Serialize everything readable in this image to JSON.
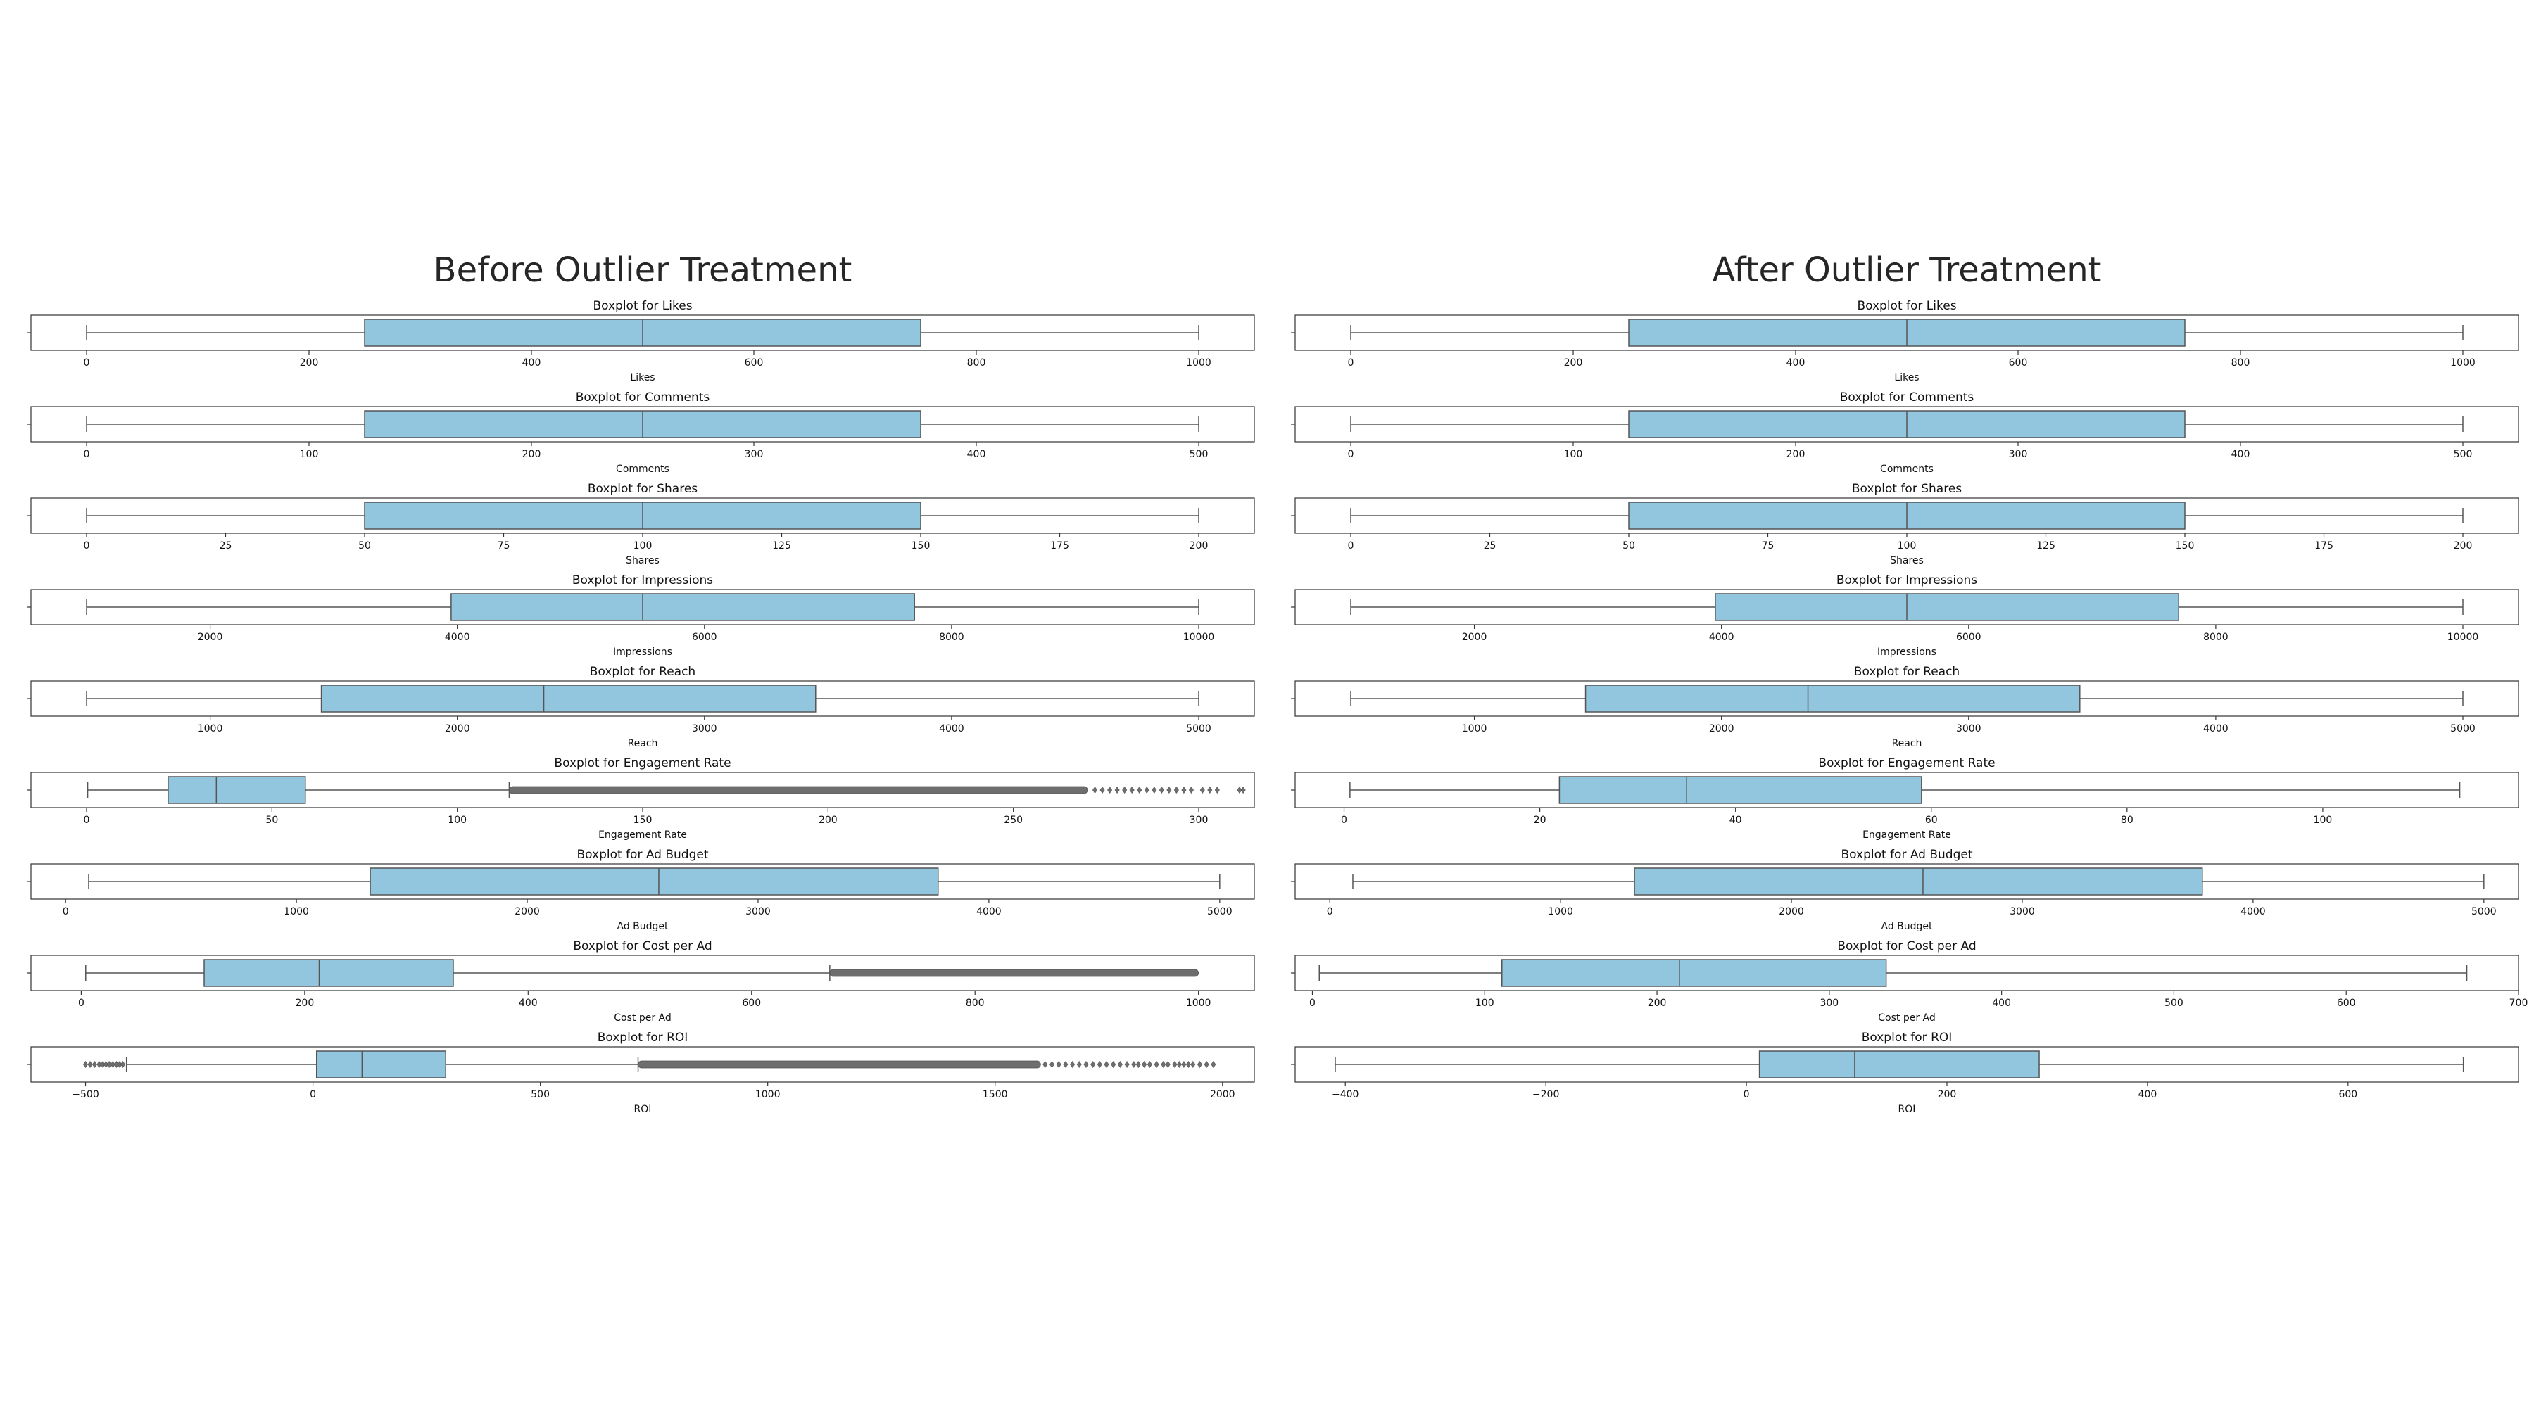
{
  "colors": {
    "box_fill": "#92c5de",
    "box_edge": "#555555",
    "outlier": "#6e6e6e",
    "frame": "#333333",
    "background": "#ffffff",
    "text": "#262626"
  },
  "chart_data": [
    {
      "type": "boxplot",
      "title": "Before Outlier Treatment",
      "grid": false,
      "panels": [
        {
          "title": "Boxplot for Likes",
          "xlabel": "Likes",
          "xlim": [
            -50,
            1050
          ],
          "ticks": [
            0,
            200,
            400,
            600,
            800,
            1000
          ],
          "stats": {
            "whislo": 0,
            "q1": 250,
            "med": 500,
            "q3": 750,
            "whishi": 1000
          },
          "outliers": []
        },
        {
          "title": "Boxplot for Comments",
          "xlabel": "Comments",
          "xlim": [
            -25,
            525
          ],
          "ticks": [
            0,
            100,
            200,
            300,
            400,
            500
          ],
          "stats": {
            "whislo": 0,
            "q1": 125,
            "med": 250,
            "q3": 375,
            "whishi": 500
          },
          "outliers": []
        },
        {
          "title": "Boxplot for Shares",
          "xlabel": "Shares",
          "xlim": [
            -10,
            210
          ],
          "ticks": [
            0,
            25,
            50,
            75,
            100,
            125,
            150,
            175,
            200
          ],
          "stats": {
            "whislo": 0,
            "q1": 50,
            "med": 100,
            "q3": 150,
            "whishi": 200
          },
          "outliers": []
        },
        {
          "title": "Boxplot for Impressions",
          "xlabel": "Impressions",
          "xlim": [
            550,
            10450
          ],
          "ticks": [
            2000,
            4000,
            6000,
            8000,
            10000
          ],
          "stats": {
            "whislo": 1000,
            "q1": 3950,
            "med": 5500,
            "q3": 7700,
            "whishi": 10000
          },
          "outliers": []
        },
        {
          "title": "Boxplot for Reach",
          "xlabel": "Reach",
          "xlim": [
            275,
            5225
          ],
          "ticks": [
            1000,
            2000,
            3000,
            4000,
            5000
          ],
          "stats": {
            "whislo": 500,
            "q1": 1450,
            "med": 2350,
            "q3": 3450,
            "whishi": 5000
          },
          "outliers": []
        },
        {
          "title": "Boxplot for Engagement Rate",
          "xlabel": "Engagement Rate",
          "xlim": [
            -15,
            315
          ],
          "ticks": [
            0,
            50,
            100,
            150,
            200,
            250,
            300
          ],
          "stats": {
            "whislo": 0.3,
            "q1": 22,
            "med": 35,
            "q3": 59,
            "whishi": 114
          },
          "outlier_range": [
            114,
            270
          ],
          "outliers": [
            272,
            274,
            276,
            278,
            280,
            282,
            284,
            286,
            288,
            290,
            292,
            294,
            296,
            298,
            301,
            303,
            305,
            311,
            312
          ]
        },
        {
          "title": "Boxplot for Ad Budget",
          "xlabel": "Ad Budget",
          "xlim": [
            -150,
            5150
          ],
          "ticks": [
            0,
            1000,
            2000,
            3000,
            4000,
            5000
          ],
          "stats": {
            "whislo": 100,
            "q1": 1320,
            "med": 2570,
            "q3": 3780,
            "whishi": 5000
          },
          "outliers": []
        },
        {
          "title": "Boxplot for Cost per Ad",
          "xlabel": "Cost per Ad",
          "xlim": [
            -45,
            1050
          ],
          "ticks": [
            0,
            200,
            400,
            600,
            800,
            1000
          ],
          "stats": {
            "whislo": 4,
            "q1": 110,
            "med": 213,
            "q3": 333,
            "whishi": 670
          },
          "outlier_range": [
            670,
            1000
          ],
          "outliers": []
        },
        {
          "title": "Boxplot for ROI",
          "xlabel": "ROI",
          "xlim": [
            -620,
            2070
          ],
          "ticks": [
            -500,
            0,
            500,
            1000,
            1500,
            2000
          ],
          "stats": {
            "whislo": -410,
            "q1": 8,
            "med": 108,
            "q3": 292,
            "whishi": 715
          },
          "outlier_range": [
            715,
            1600
          ],
          "outliers": [
            -500,
            -490,
            -480,
            -470,
            -462,
            -455,
            -448,
            -440,
            -432,
            -425,
            -418,
            1610,
            1625,
            1640,
            1655,
            1670,
            1685,
            1700,
            1715,
            1730,
            1745,
            1760,
            1775,
            1790,
            1805,
            1815,
            1828,
            1840,
            1855,
            1870,
            1880,
            1895,
            1905,
            1915,
            1925,
            1935,
            1950,
            1965,
            1980
          ]
        }
      ]
    },
    {
      "type": "boxplot",
      "title": "After Outlier Treatment",
      "grid": false,
      "panels": [
        {
          "title": "Boxplot for Likes",
          "xlabel": "Likes",
          "xlim": [
            -50,
            1050
          ],
          "ticks": [
            0,
            200,
            400,
            600,
            800,
            1000
          ],
          "stats": {
            "whislo": 0,
            "q1": 250,
            "med": 500,
            "q3": 750,
            "whishi": 1000
          },
          "outliers": []
        },
        {
          "title": "Boxplot for Comments",
          "xlabel": "Comments",
          "xlim": [
            -25,
            525
          ],
          "ticks": [
            0,
            100,
            200,
            300,
            400,
            500
          ],
          "stats": {
            "whislo": 0,
            "q1": 125,
            "med": 250,
            "q3": 375,
            "whishi": 500
          },
          "outliers": []
        },
        {
          "title": "Boxplot for Shares",
          "xlabel": "Shares",
          "xlim": [
            -10,
            210
          ],
          "ticks": [
            0,
            25,
            50,
            75,
            100,
            125,
            150,
            175,
            200
          ],
          "stats": {
            "whislo": 0,
            "q1": 50,
            "med": 100,
            "q3": 150,
            "whishi": 200
          },
          "outliers": []
        },
        {
          "title": "Boxplot for Impressions",
          "xlabel": "Impressions",
          "xlim": [
            550,
            10450
          ],
          "ticks": [
            2000,
            4000,
            6000,
            8000,
            10000
          ],
          "stats": {
            "whislo": 1000,
            "q1": 3950,
            "med": 5500,
            "q3": 7700,
            "whishi": 10000
          },
          "outliers": []
        },
        {
          "title": "Boxplot for Reach",
          "xlabel": "Reach",
          "xlim": [
            275,
            5225
          ],
          "ticks": [
            1000,
            2000,
            3000,
            4000,
            5000
          ],
          "stats": {
            "whislo": 500,
            "q1": 1450,
            "med": 2350,
            "q3": 3450,
            "whishi": 5000
          },
          "outliers": []
        },
        {
          "title": "Boxplot for Engagement Rate",
          "xlabel": "Engagement Rate",
          "xlim": [
            -5,
            120
          ],
          "ticks": [
            0,
            20,
            40,
            60,
            80,
            100
          ],
          "stats": {
            "whislo": 0.6,
            "q1": 22,
            "med": 35,
            "q3": 59,
            "whishi": 114
          },
          "outliers": []
        },
        {
          "title": "Boxplot for Ad Budget",
          "xlabel": "Ad Budget",
          "xlim": [
            -150,
            5150
          ],
          "ticks": [
            0,
            1000,
            2000,
            3000,
            4000,
            5000
          ],
          "stats": {
            "whislo": 100,
            "q1": 1320,
            "med": 2570,
            "q3": 3780,
            "whishi": 5000
          },
          "outliers": []
        },
        {
          "title": "Boxplot for Cost per Ad",
          "xlabel": "Cost per Ad",
          "xlim": [
            -10,
            700
          ],
          "ticks": [
            0,
            100,
            200,
            300,
            400,
            500,
            600,
            700
          ],
          "stats": {
            "whislo": 4,
            "q1": 110,
            "med": 213,
            "q3": 333,
            "whishi": 670
          },
          "outliers": []
        },
        {
          "title": "Boxplot for ROI",
          "xlabel": "ROI",
          "xlim": [
            -450,
            770
          ],
          "ticks": [
            -400,
            -200,
            0,
            200,
            400,
            600
          ],
          "stats": {
            "whislo": -410,
            "q1": 13,
            "med": 108,
            "q3": 292,
            "whishi": 715
          },
          "outliers": []
        }
      ]
    }
  ]
}
